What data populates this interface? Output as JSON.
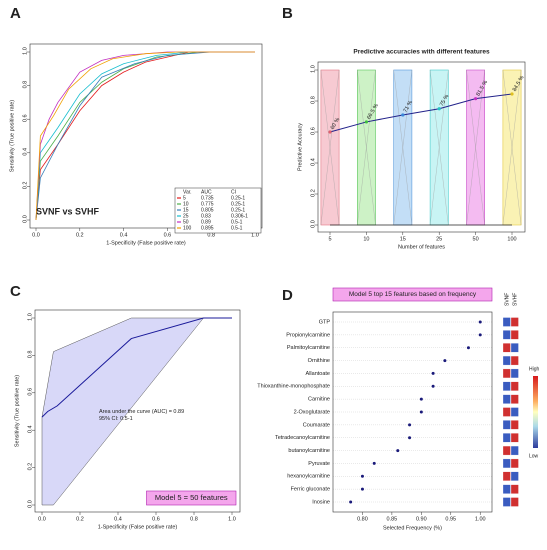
{
  "chart_data": [
    {
      "type": "roc",
      "panel": "A",
      "ylabel": "Sensitivity (True positive rate)",
      "xlabel": "1-Specificity (False positive rate)",
      "annotation": "SVNF vs SVHF",
      "xlim": [
        0,
        1
      ],
      "ylim": [
        0,
        1
      ],
      "xticks": [
        {
          "value": 0,
          "label": "0.0"
        },
        {
          "value": 0.2,
          "label": "0.2"
        },
        {
          "value": 0.4,
          "label": "0.4"
        },
        {
          "value": 0.6,
          "label": "0.6"
        },
        {
          "value": 0.8,
          "label": "0.8"
        },
        {
          "value": 1,
          "label": "1.0"
        }
      ],
      "yticks": [
        {
          "value": 0,
          "label": "0.0"
        },
        {
          "value": 0.2,
          "label": "0.2"
        },
        {
          "value": 0.4,
          "label": "0.4"
        },
        {
          "value": 0.6,
          "label": "0.6"
        },
        {
          "value": 0.8,
          "label": "0.8"
        },
        {
          "value": 1,
          "label": "1.0"
        }
      ],
      "legend_header": [
        "Var.",
        "AUC",
        "CI"
      ],
      "series": [
        {
          "name": "5",
          "auc": 0.735,
          "ci": "0.25-1",
          "color": "#e41a1c",
          "x": [
            0,
            0.02,
            0.1,
            0.2,
            0.3,
            0.4,
            0.5,
            0.7,
            1
          ],
          "values": [
            0,
            0.3,
            0.45,
            0.65,
            0.8,
            0.88,
            0.94,
            1,
            1
          ]
        },
        {
          "name": "10",
          "auc": 0.775,
          "ci": "0.25-1",
          "color": "#4daf4a",
          "x": [
            0,
            0.02,
            0.1,
            0.2,
            0.3,
            0.4,
            0.55,
            0.75,
            1
          ],
          "values": [
            0,
            0.35,
            0.5,
            0.7,
            0.82,
            0.9,
            0.97,
            1,
            1
          ]
        },
        {
          "name": "15",
          "auc": 0.805,
          "ci": "0.25-1",
          "color": "#377eb8",
          "x": [
            0,
            0.02,
            0.1,
            0.2,
            0.3,
            0.45,
            0.6,
            0.8,
            1
          ],
          "values": [
            0,
            0.25,
            0.45,
            0.68,
            0.85,
            0.93,
            0.98,
            1,
            1
          ]
        },
        {
          "name": "25",
          "auc": 0.83,
          "ci": "0.306-1",
          "color": "#17becf",
          "x": [
            0,
            0.02,
            0.1,
            0.2,
            0.3,
            0.4,
            0.55,
            0.7,
            1
          ],
          "values": [
            0,
            0.4,
            0.55,
            0.75,
            0.87,
            0.93,
            0.98,
            1,
            1
          ]
        },
        {
          "name": "50",
          "auc": 0.89,
          "ci": "0.5-1",
          "color": "#c02cc0",
          "x": [
            0,
            0.02,
            0.06,
            0.1,
            0.2,
            0.3,
            0.4,
            0.6,
            1
          ],
          "values": [
            0,
            0.45,
            0.6,
            0.7,
            0.88,
            0.95,
            0.98,
            1,
            1
          ]
        },
        {
          "name": "100",
          "auc": 0.895,
          "ci": "0.5-1",
          "color": "#f0a000",
          "x": [
            0,
            0.02,
            0.08,
            0.15,
            0.25,
            0.35,
            0.5,
            0.65,
            1
          ],
          "values": [
            0,
            0.5,
            0.62,
            0.78,
            0.9,
            0.96,
            0.99,
            1,
            1
          ]
        }
      ]
    },
    {
      "type": "line",
      "panel": "B",
      "title": "Predictive accuracies with different features",
      "xlabel": "Number of features",
      "ylabel": "Predictive Accuracy",
      "categories": [
        "5",
        "10",
        "15",
        "25",
        "50",
        "100"
      ],
      "values": [
        0.6,
        0.665,
        0.71,
        0.75,
        0.815,
        0.845
      ],
      "value_labels": [
        "60 %",
        "66.5 %",
        "71 %",
        "75 %",
        "81.5 %",
        "84.5 %"
      ],
      "band_colors": [
        [
          "#f6c1cb",
          "#e0606f"
        ],
        [
          "#c5f0bd",
          "#3fbf3f"
        ],
        [
          "#b9d9f5",
          "#3a88d8"
        ],
        [
          "#bff3f3",
          "#25c5c5"
        ],
        [
          "#f3b0ef",
          "#c030c0"
        ],
        [
          "#faf0a8",
          "#e0c020"
        ]
      ],
      "color": "#22228a",
      "ylim": [
        0,
        1
      ],
      "yticks": [
        {
          "value": 0,
          "label": "0.0"
        },
        {
          "value": 0.2,
          "label": "0.2"
        },
        {
          "value": 0.4,
          "label": "0.4"
        },
        {
          "value": 0.6,
          "label": "0.6"
        },
        {
          "value": 0.8,
          "label": "0.8"
        },
        {
          "value": 1,
          "label": "1.0"
        }
      ]
    },
    {
      "type": "roc",
      "panel": "C",
      "ylabel": "Sensitivity (True positive rate)",
      "xlabel": "1-Specificity (False positive rate)",
      "annotations": [
        "Area under the curve (AUC) = 0.89",
        "95% CI: 0.5-1"
      ],
      "model_label": "Model 5 = 50 features",
      "xlim": [
        0,
        1
      ],
      "ylim": [
        0,
        1
      ],
      "xticks": [
        {
          "value": 0,
          "label": "0.0"
        },
        {
          "value": 0.2,
          "label": "0.2"
        },
        {
          "value": 0.4,
          "label": "0.4"
        },
        {
          "value": 0.6,
          "label": "0.6"
        },
        {
          "value": 0.8,
          "label": "0.8"
        },
        {
          "value": 1,
          "label": "1.0"
        }
      ],
      "yticks": [
        {
          "value": 0,
          "label": "0.0"
        },
        {
          "value": 0.2,
          "label": "0.2"
        },
        {
          "value": 0.4,
          "label": "0.4"
        },
        {
          "value": 0.6,
          "label": "0.6"
        },
        {
          "value": 0.8,
          "label": "0.8"
        },
        {
          "value": 1,
          "label": "1.0"
        }
      ],
      "ci_band": {
        "color": "#d8d8f8",
        "x": [
          0,
          0.06,
          0.47,
          1,
          1,
          0.85,
          0.06,
          0
        ],
        "values": [
          0.47,
          0.82,
          1,
          1,
          1,
          1,
          0,
          0
        ]
      },
      "series": [
        {
          "color": "#1a1a9a",
          "x": [
            0,
            0.03,
            0.08,
            0.47,
            0.85,
            1
          ],
          "values": [
            0.47,
            0.5,
            0.53,
            0.89,
            1,
            1
          ]
        }
      ]
    },
    {
      "type": "dot",
      "panel": "D",
      "title": "Model 5 top 15 features based on frequency",
      "xlabel": "Selected Frequency (%)",
      "categories": [
        "GTP",
        "Propionylcarnitine",
        "Palmitoylcarnitine",
        "Ornithine",
        "Allantoate",
        "Thioxanthine-monophosphate",
        "Carnitine",
        "2-Oxoglutarate",
        "Coumarate",
        "Tetradecanoylcarnitine",
        "butanoylcarnitine",
        "Pyruvate",
        "hexanoylcarnitine",
        "Ferric gluconate",
        "Inosine"
      ],
      "values": [
        1.0,
        1.0,
        0.98,
        0.94,
        0.92,
        0.92,
        0.9,
        0.9,
        0.88,
        0.88,
        0.86,
        0.82,
        0.8,
        0.8,
        0.78
      ],
      "color": "#1a1a7a",
      "xlim": [
        0.75,
        1.02
      ],
      "xticks": [
        {
          "value": 0.8,
          "label": "0.80"
        },
        {
          "value": 0.85,
          "label": "0.85"
        },
        {
          "value": 0.9,
          "label": "0.90"
        },
        {
          "value": 0.95,
          "label": "0.95"
        },
        {
          "value": 1,
          "label": "1.00"
        }
      ],
      "heat_columns": [
        "SVNF",
        "SVHF"
      ],
      "heat_colors": [
        [
          "#3a5cc0",
          "#d03030"
        ],
        [
          "#3a5cc0",
          "#d03030"
        ],
        [
          "#d03030",
          "#3a5cc0"
        ],
        [
          "#3a5cc0",
          "#d03030"
        ],
        [
          "#d03030",
          "#3a5cc0"
        ],
        [
          "#3a5cc0",
          "#d03030"
        ],
        [
          "#3a5cc0",
          "#d03030"
        ],
        [
          "#d03030",
          "#3a5cc0"
        ],
        [
          "#3a5cc0",
          "#d03030"
        ],
        [
          "#3a5cc0",
          "#d03030"
        ],
        [
          "#d03030",
          "#3a5cc0"
        ],
        [
          "#3a5cc0",
          "#d03030"
        ],
        [
          "#d03030",
          "#3a5cc0"
        ],
        [
          "#3a5cc0",
          "#d03030"
        ],
        [
          "#3a5cc0",
          "#d03030"
        ]
      ],
      "colorbar_labels": [
        "High",
        "Low"
      ]
    }
  ]
}
